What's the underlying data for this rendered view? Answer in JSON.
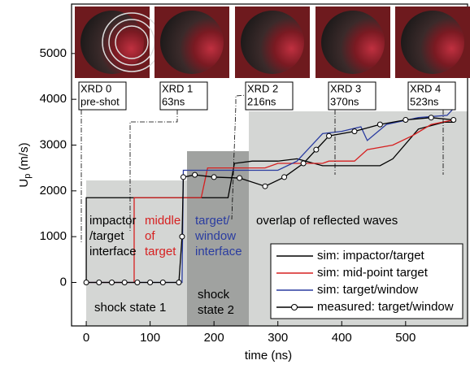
{
  "chart_data": {
    "type": "line",
    "xlabel": "time (ns)",
    "ylabel": "U",
    "ylabel_sub": "p",
    "ylabel_unit": "(m/s)",
    "xlim": [
      -23,
      597
    ],
    "ylim": [
      -950,
      6080
    ],
    "xticks": [
      0,
      100,
      200,
      300,
      400,
      500
    ],
    "yticks": [
      0,
      1000,
      2000,
      3000,
      4000,
      5000
    ],
    "legend": "lower right",
    "series": [
      {
        "name": "sim: impactor/target",
        "color": "#000000",
        "x": [
          0,
          0,
          222,
          232,
          260,
          300,
          330,
          370,
          460,
          480,
          520,
          560,
          575
        ],
        "values": [
          0,
          1850,
          1850,
          2600,
          2650,
          2650,
          2700,
          2550,
          2550,
          2700,
          3350,
          3500,
          3500
        ]
      },
      {
        "name": "sim: mid-point target",
        "color": "#d62020",
        "x": [
          0,
          75,
          75,
          180,
          190,
          280,
          300,
          370,
          380,
          420,
          440,
          480,
          510,
          540,
          575
        ],
        "values": [
          0,
          0,
          1850,
          1850,
          2500,
          2500,
          2600,
          2600,
          2650,
          2650,
          2900,
          3000,
          3200,
          3450,
          3550
        ]
      },
      {
        "name": "sim: target/window",
        "color": "#2a3ca0",
        "x": [
          0,
          150,
          152,
          300,
          330,
          370,
          400,
          430,
          440,
          470,
          520,
          565,
          575
        ],
        "values": [
          0,
          0,
          2450,
          2450,
          2650,
          3250,
          3300,
          3400,
          3100,
          3450,
          3600,
          3650,
          3800
        ]
      },
      {
        "name": "measured: target/window",
        "color": "#000000",
        "marker": "open-circle",
        "x": [
          0,
          20,
          40,
          60,
          80,
          100,
          120,
          145,
          150,
          152,
          170,
          200,
          240,
          280,
          310,
          340,
          360,
          380,
          420,
          460,
          500,
          540,
          575
        ],
        "values": [
          0,
          0,
          0,
          0,
          0,
          0,
          0,
          0,
          1000,
          2300,
          2350,
          2300,
          2280,
          2100,
          2300,
          2600,
          2900,
          3200,
          3300,
          3450,
          3550,
          3600,
          3550
        ]
      }
    ],
    "annotations": {
      "impactor": [
        "impactor",
        "/target",
        "interface"
      ],
      "middle": [
        "middle",
        "of",
        "target"
      ],
      "window": [
        "target/",
        "window",
        "interface"
      ],
      "overlap": "overlap of reflected waves",
      "state1": "shock state 1",
      "state2": [
        "shock",
        "state 2"
      ]
    },
    "xrd": [
      {
        "label": "XRD 0",
        "time": "pre-shot"
      },
      {
        "label": "XRD 1",
        "time": "63ns"
      },
      {
        "label": "XRD 2",
        "time": "216ns"
      },
      {
        "label": "XRD 3",
        "time": "370ns"
      },
      {
        "label": "XRD 4",
        "time": "523ns"
      }
    ]
  }
}
